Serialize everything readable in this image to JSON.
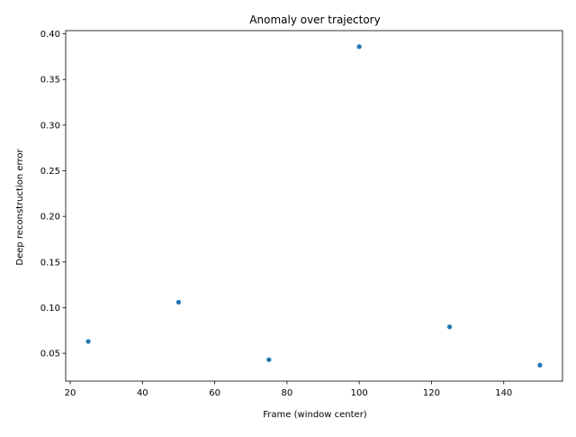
{
  "chart_data": {
    "type": "scatter",
    "title": "Anomaly over trajectory",
    "xlabel": "Frame (window center)",
    "ylabel": "Deep reconstruction error",
    "x": [
      25,
      50,
      75,
      100,
      125,
      150
    ],
    "y": [
      0.063,
      0.106,
      0.043,
      0.386,
      0.079,
      0.037
    ],
    "xlim": [
      18.75,
      156.25
    ],
    "ylim": [
      0.0195,
      0.4035
    ],
    "xticks": [
      20,
      40,
      60,
      80,
      100,
      120,
      140
    ],
    "xtick_labels": [
      "20",
      "40",
      "60",
      "80",
      "100",
      "120",
      "140"
    ],
    "yticks": [
      0.05,
      0.1,
      0.15,
      0.2,
      0.25,
      0.3,
      0.35,
      0.4
    ],
    "ytick_labels": [
      "0.05",
      "0.10",
      "0.15",
      "0.20",
      "0.25",
      "0.30",
      "0.35",
      "0.40"
    ],
    "grid": false,
    "marker_color": "#1f77b4"
  }
}
